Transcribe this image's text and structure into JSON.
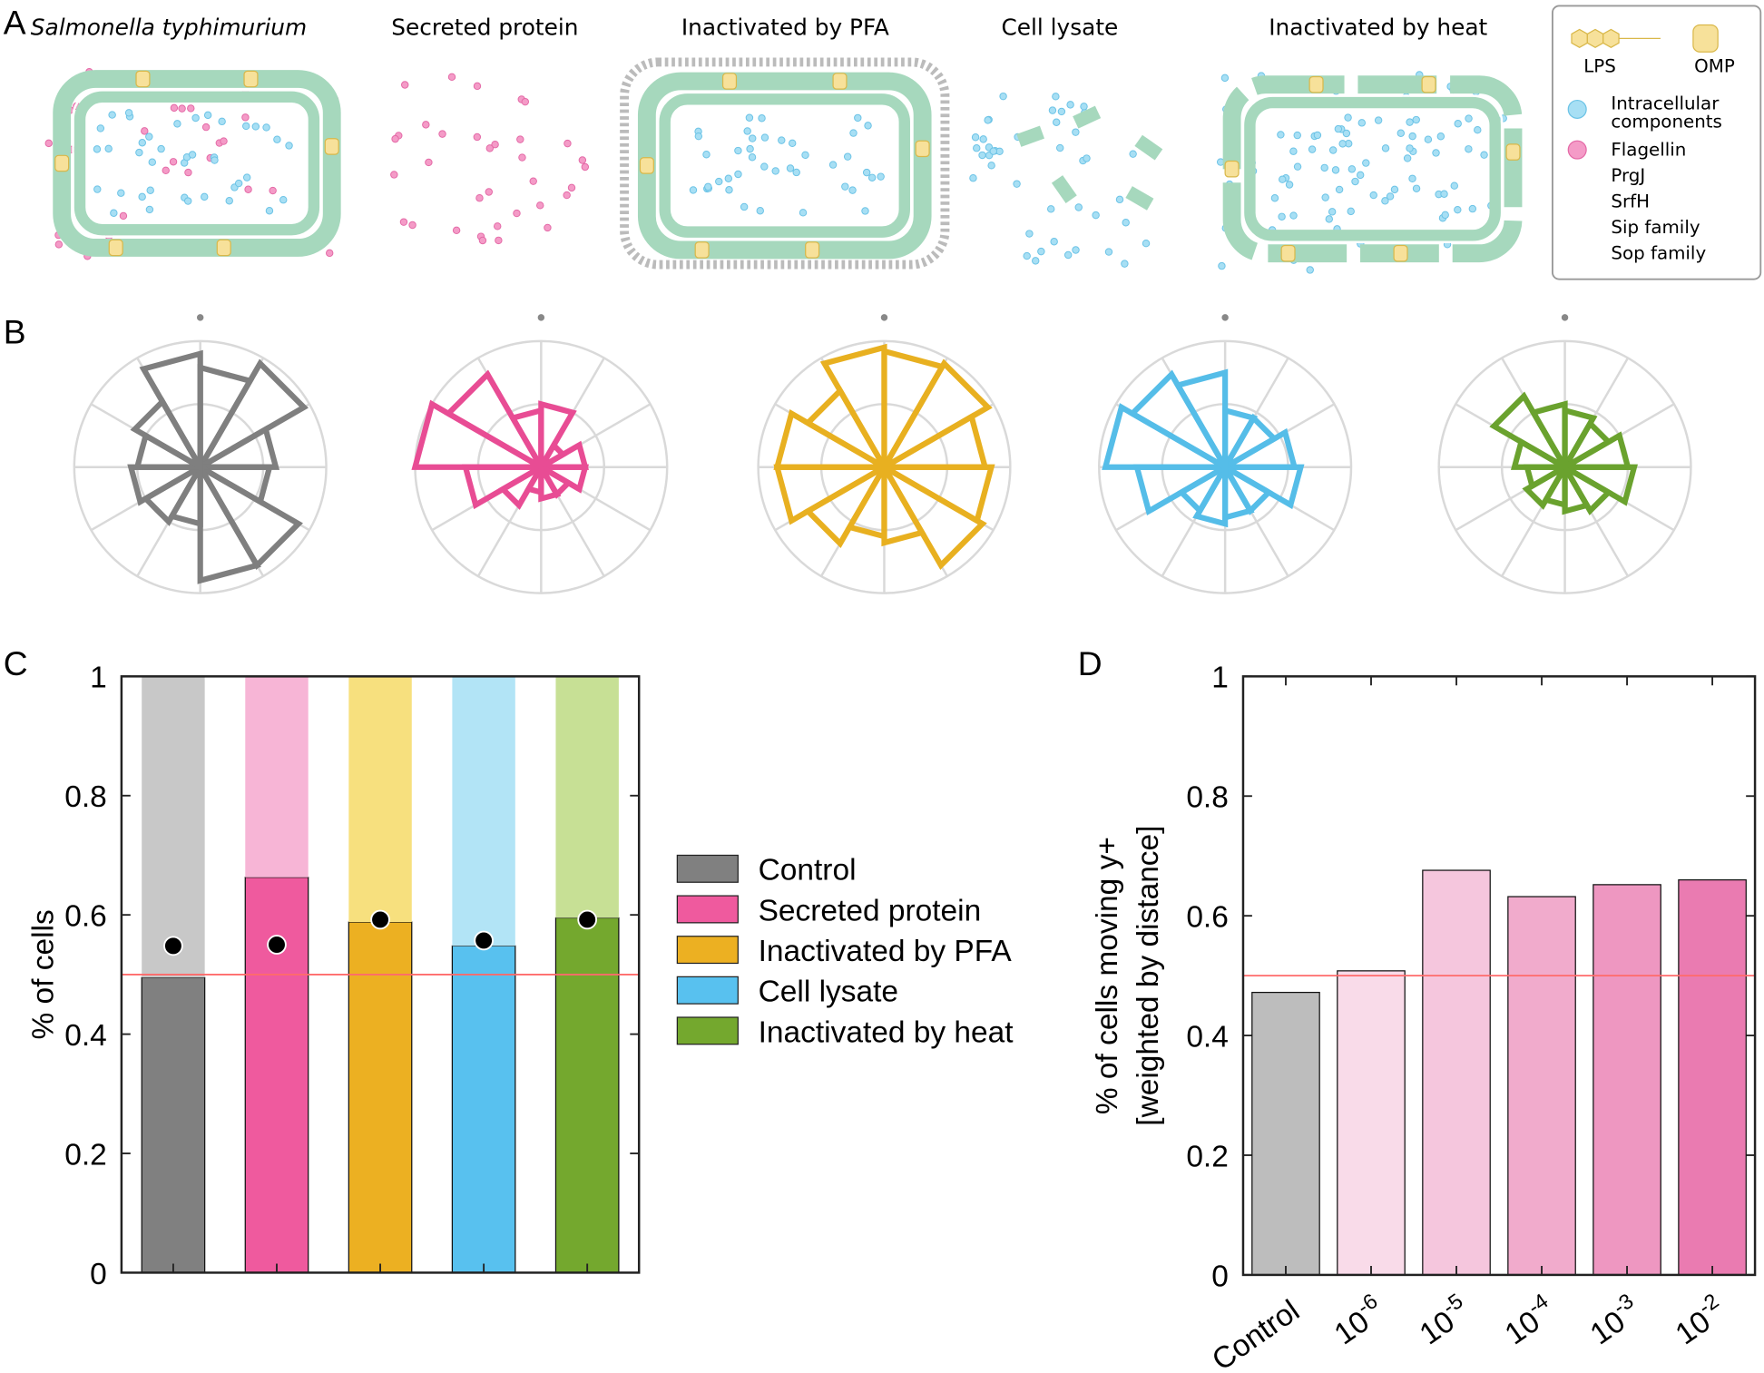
{
  "panel_labels": [
    "A",
    "B",
    "C",
    "D"
  ],
  "diagram": {
    "titles": [
      "Salmonella typhimurium",
      "Secreted protein",
      "Inactivated by PFA",
      "Cell lysate",
      "Inactivated by heat"
    ],
    "legend": {
      "lps": "LPS",
      "omp": "OMP",
      "intracellular": [
        "Intracellular",
        "components"
      ],
      "proteins": [
        "Flagellin",
        "PrgJ",
        "SrfH",
        "Sip family",
        "Sop family"
      ]
    }
  },
  "chart_data": [
    {
      "type": "polar",
      "color": "#7f7f7f",
      "rlim": [
        0,
        1
      ],
      "values": [
        0.79,
        0.95,
        0.6,
        0.55,
        0.9,
        0.9,
        0.45,
        0.5,
        0.55,
        0.5,
        0.6,
        0.9
      ]
    },
    {
      "type": "polar",
      "color": "#e84c94",
      "rlim": [
        0,
        1
      ],
      "values": [
        0.5,
        0.2,
        0.35,
        0.35,
        0.25,
        0.25,
        0.2,
        0.35,
        0.6,
        1.0,
        0.85,
        0.45
      ]
    },
    {
      "type": "polar",
      "color": "#e8b020",
      "rlim": [
        0,
        1
      ],
      "values": [
        0.92,
        0.95,
        0.8,
        0.85,
        0.9,
        0.6,
        0.55,
        0.7,
        0.85,
        0.85,
        0.7,
        0.95
      ]
    },
    {
      "type": "polar",
      "color": "#55bde8",
      "rlim": [
        0,
        1
      ],
      "values": [
        0.45,
        0.45,
        0.55,
        0.6,
        0.4,
        0.4,
        0.45,
        0.4,
        0.7,
        0.95,
        0.85,
        0.75
      ]
    },
    {
      "type": "polar",
      "color": "#6aa22e",
      "rlim": [
        0,
        1
      ],
      "values": [
        0.45,
        0.4,
        0.5,
        0.55,
        0.4,
        0.35,
        0.3,
        0.35,
        0.3,
        0.4,
        0.65,
        0.5
      ]
    },
    {
      "type": "stacked_bar",
      "ylabel": "% of cells",
      "ylim": [
        0,
        1
      ],
      "yticks": [
        0,
        0.2,
        0.4,
        0.6,
        0.8,
        1
      ],
      "categories": [
        null,
        null,
        null,
        null,
        null
      ],
      "legend": [
        "Control",
        "Secreted protein",
        "Inactivated by PFA",
        "Cell lysate",
        "Inactivated by heat"
      ],
      "series": [
        {
          "colors": [
            "#808080",
            "#ef5a9e",
            "#ecb022",
            "#58c1ef",
            "#74a82e"
          ],
          "values": [
            0.495,
            0.663,
            0.588,
            0.548,
            0.595
          ]
        },
        {
          "colors": [
            "#c8c8c8",
            "#f7b5d6",
            "#f7e07e",
            "#b2e4f6",
            "#c7e095"
          ],
          "values": [
            0.505,
            0.337,
            0.412,
            0.452,
            0.405
          ]
        }
      ],
      "points": [
        0.548,
        0.55,
        0.592,
        0.557,
        0.592
      ],
      "reference_line": 0.5
    },
    {
      "type": "bar",
      "ylabel": [
        "% of cells moving y+",
        "[weighted by distance]"
      ],
      "ylim": [
        0,
        1
      ],
      "yticks": [
        0,
        0.2,
        0.4,
        0.6,
        0.8,
        1
      ],
      "categories": [
        "Control",
        "10",
        "10",
        "10",
        "10",
        "10"
      ],
      "category_exponents": [
        null,
        "-6",
        "-5",
        "-4",
        "-3",
        "-2"
      ],
      "colors": [
        "#bdbdbd",
        "#f9dbe9",
        "#f5c6dd",
        "#f1abcc",
        "#ee97c1",
        "#ea7bb1"
      ],
      "values": [
        0.472,
        0.508,
        0.676,
        0.632,
        0.652,
        0.66
      ],
      "reference_line": 0.5
    }
  ]
}
